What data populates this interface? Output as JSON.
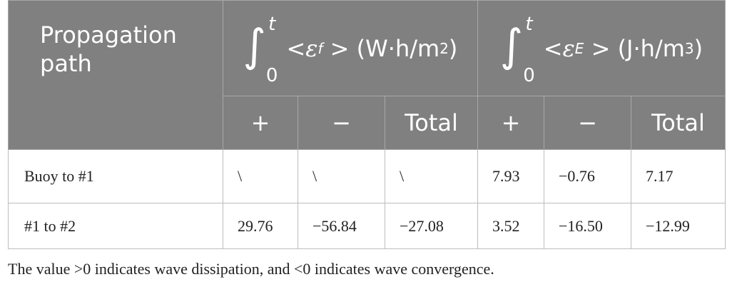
{
  "table": {
    "header": {
      "path": "Propagation path",
      "flux": {
        "integral": "∫",
        "upper": "t",
        "lower": "0",
        "pre": "< ",
        "symbol": "ε",
        "sub": "f",
        "post": " > (W·h/m",
        "sup": "2",
        "close": ")"
      },
      "energy": {
        "integral": "∫",
        "upper": "t",
        "lower": "0",
        "pre": "< ",
        "symbol": "ε",
        "sub": "E",
        "post": " > (J·h/m",
        "sup": "3",
        "close": ")"
      },
      "sub": [
        "+",
        "−",
        "Total",
        "+",
        "−",
        "Total"
      ]
    },
    "rows": [
      [
        "Buoy to #1",
        "\\",
        "\\",
        "\\",
        "7.93",
        "−0.76",
        "7.17"
      ],
      [
        "#1 to #2",
        "29.76",
        "−56.84",
        "−27.08",
        "3.52",
        "−16.50",
        "−12.99"
      ]
    ]
  },
  "footnote": "The value >0 indicates wave dissipation, and <0 indicates wave convergence."
}
